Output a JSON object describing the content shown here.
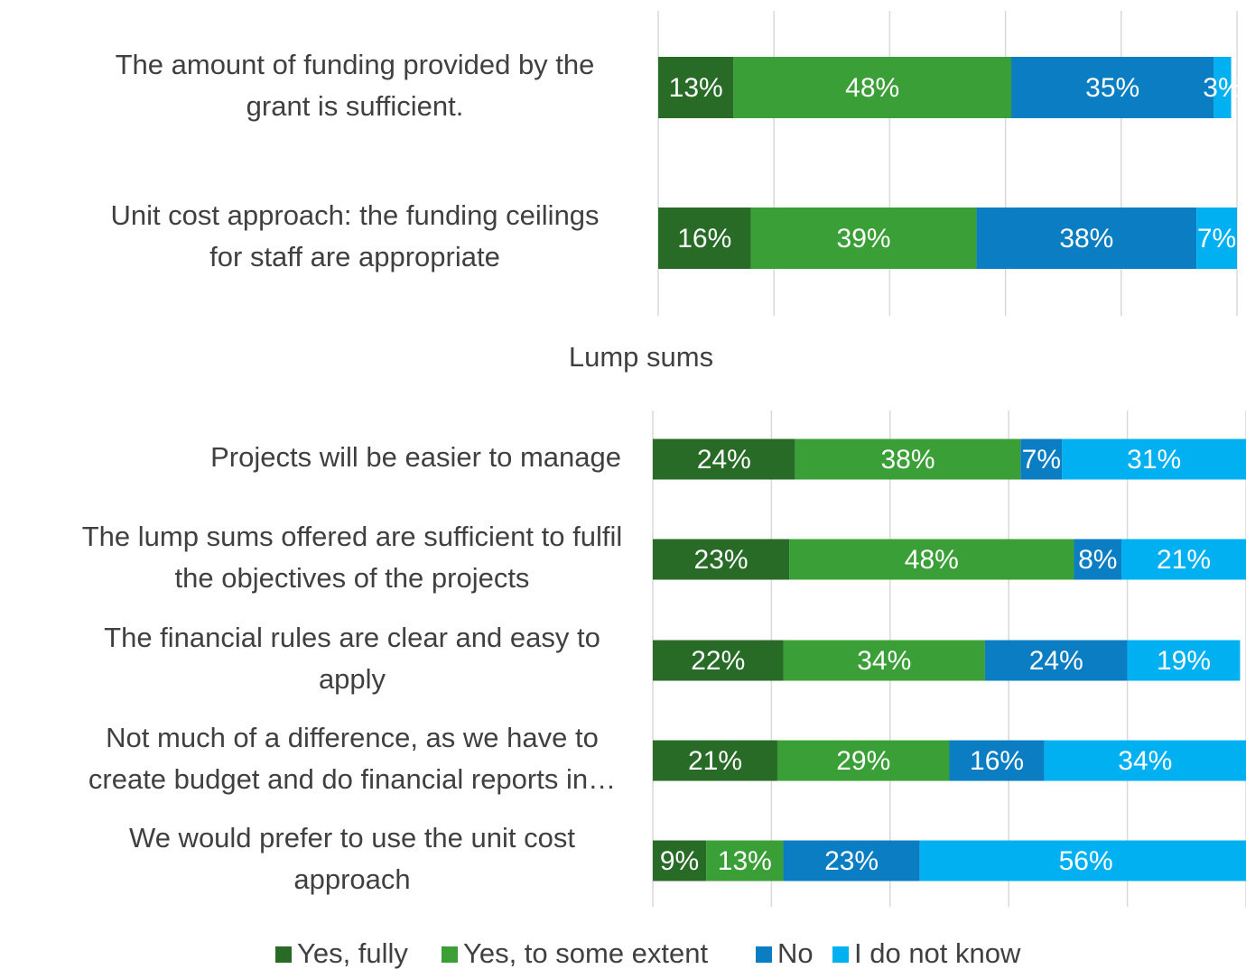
{
  "legend": [
    {
      "name": "Yes, fully",
      "color": "#276b27"
    },
    {
      "name": "Yes, to some extent",
      "color": "#3a9f36"
    },
    {
      "name": "No",
      "color": "#0b7dc2"
    },
    {
      "name": "I do not know",
      "color": "#00b0f0"
    }
  ],
  "chart_data": [
    {
      "type": "stacked-bar-horizontal",
      "categories": [
        [
          "The amount of funding provided by the",
          "grant is sufficient."
        ],
        [
          "Unit cost approach: the funding ceilings",
          "for staff are appropriate"
        ]
      ],
      "series": [
        {
          "values": [
            13,
            16
          ]
        },
        {
          "values": [
            48,
            39
          ]
        },
        {
          "values": [
            35,
            38
          ]
        },
        {
          "values": [
            3,
            7
          ]
        }
      ],
      "value_labels": [
        [
          "13%",
          "16%"
        ],
        [
          "48%",
          "39%"
        ],
        [
          "35%",
          "38%"
        ],
        [
          "3%",
          "7%"
        ]
      ],
      "xlim": [
        0,
        100
      ],
      "xticks": [
        0,
        20,
        40,
        60,
        80,
        100
      ],
      "grid": true
    },
    {
      "type": "stacked-bar-horizontal",
      "title": "Lump sums",
      "categories": [
        [
          "Projects will be easier to manage"
        ],
        [
          "The lump sums offered are sufficient to fulfil",
          "the objectives of the projects"
        ],
        [
          "The financial rules are clear and easy to",
          "apply"
        ],
        [
          "Not much of a difference, as we have to",
          "create budget and do financial reports in…"
        ],
        [
          "We would prefer to use the unit cost",
          "approach"
        ]
      ],
      "series": [
        {
          "values": [
            24,
            23,
            22,
            21,
            9
          ]
        },
        {
          "values": [
            38,
            48,
            34,
            29,
            13
          ]
        },
        {
          "values": [
            7,
            8,
            24,
            16,
            23
          ]
        },
        {
          "values": [
            31,
            21,
            19,
            34,
            56
          ]
        }
      ],
      "value_labels": [
        [
          "24%",
          "23%",
          "22%",
          "21%",
          "9%"
        ],
        [
          "38%",
          "48%",
          "34%",
          "29%",
          "13%"
        ],
        [
          "7%",
          "8%",
          "24%",
          "16%",
          "23%"
        ],
        [
          "31%",
          "21%",
          "19%",
          "34%",
          "56%"
        ]
      ],
      "xlim": [
        0,
        100
      ],
      "xticks": [
        0,
        20,
        40,
        60,
        80,
        100
      ],
      "grid": true
    }
  ]
}
